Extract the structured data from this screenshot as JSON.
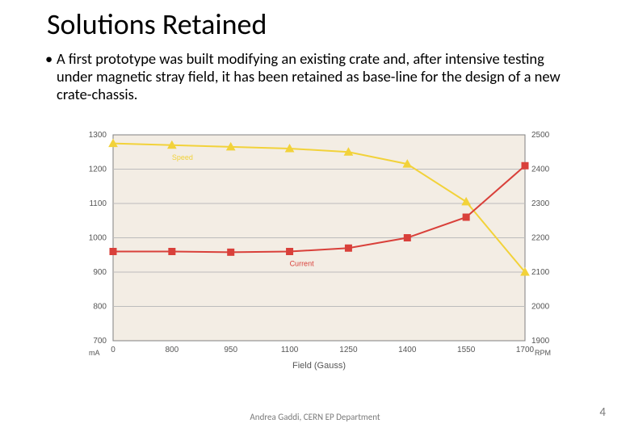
{
  "title": "Solutions Retained",
  "bullet_text": "A first prototype was built modifying an existing crate and, after intensive testing under magnetic stray field, it has been retained as base-line for the design of a new crate-chassis.",
  "footer": "Andrea Gaddi, CERN EP Department",
  "page_number": "4",
  "chart": {
    "type": "dual-axis-line",
    "background_color": "#f3ede4",
    "plot_border_color": "#808080",
    "grid_color": "#bcbcbc",
    "x": {
      "label": "Field (Gauss)",
      "ticks": [
        0,
        800,
        950,
        1100,
        1250,
        1400,
        1550,
        1700
      ],
      "tick_labels": [
        "0",
        "800",
        "950",
        "1100",
        "1250",
        "1400",
        "1550",
        "1700"
      ]
    },
    "y_left": {
      "min": 700,
      "max": 1300,
      "step": 100,
      "tick_labels": [
        "700",
        "800",
        "900",
        "1000",
        "1100",
        "1200",
        "1300"
      ],
      "unit": "mA"
    },
    "y_right": {
      "min": 1900,
      "max": 2500,
      "step": 100,
      "tick_labels": [
        "1900",
        "2000",
        "2100",
        "2200",
        "2300",
        "2400",
        "2500"
      ],
      "unit": "RPM"
    },
    "series": [
      {
        "name": "Speed",
        "axis": "right",
        "color": "#f2d23a",
        "marker": "triangle",
        "line_width": 2,
        "x": [
          0,
          800,
          950,
          1100,
          1250,
          1400,
          1550,
          1700
        ],
        "y": [
          2475,
          2470,
          2465,
          2460,
          2450,
          2415,
          2305,
          2100
        ],
        "label_pos": {
          "x_index": 1,
          "dy": 18
        }
      },
      {
        "name": "Current",
        "axis": "left",
        "color": "#d9403a",
        "marker": "square",
        "line_width": 2,
        "x": [
          0,
          800,
          950,
          1100,
          1250,
          1400,
          1550,
          1700
        ],
        "y": [
          960,
          960,
          958,
          960,
          970,
          1000,
          1060,
          1210
        ],
        "label_pos": {
          "x_index": 3,
          "dy": 18
        }
      }
    ]
  }
}
